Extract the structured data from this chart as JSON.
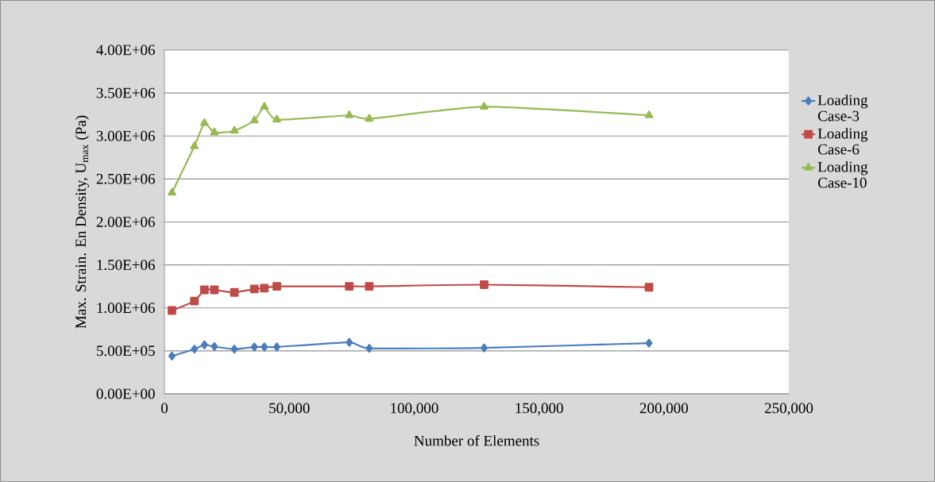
{
  "chart_data": {
    "type": "line",
    "xlabel": "Number of Elements",
    "ylabel": "Max. Strain. En Density, U$_{max}$ (Pa)",
    "x": [
      3000,
      12000,
      16000,
      20000,
      28000,
      36000,
      40000,
      45000,
      74000,
      82000,
      128000,
      194000
    ],
    "series": [
      {
        "name": "Loading Case-3",
        "color": "#4a7ebb",
        "marker": "diamond",
        "values": [
          440000,
          520000,
          570000,
          550000,
          520000,
          545000,
          545000,
          545000,
          600000,
          530000,
          535000,
          590000
        ]
      },
      {
        "name": "Loading Case-6",
        "color": "#be4b48",
        "marker": "square",
        "values": [
          970000,
          1080000,
          1210000,
          1210000,
          1180000,
          1220000,
          1230000,
          1250000,
          1250000,
          1250000,
          1270000,
          1240000
        ]
      },
      {
        "name": "Loading Case-10",
        "color": "#98b954",
        "marker": "triangle",
        "values": [
          2340000,
          2880000,
          3150000,
          3040000,
          3060000,
          3180000,
          3340000,
          3190000,
          3240000,
          3200000,
          3340000,
          3240000
        ]
      }
    ],
    "xlim": [
      0,
      250000
    ],
    "ylim": [
      0,
      4000000
    ],
    "xticks": [
      0,
      {
        "value": 50000,
        "label": "50,000"
      },
      {
        "value": 100000,
        "label": "100,000"
      },
      {
        "value": 150000,
        "label": "150,000"
      },
      {
        "value": 200000,
        "label": "200,000"
      },
      {
        "value": 250000,
        "label": "250,000"
      }
    ],
    "yticks": [
      {
        "value": 0,
        "label": "0.00E+00"
      },
      {
        "value": 500000,
        "label": "5.00E+05"
      },
      {
        "value": 1000000,
        "label": "1.00E+06"
      },
      {
        "value": 1500000,
        "label": "1.50E+06"
      },
      {
        "value": 2000000,
        "label": "2.00E+06"
      },
      {
        "value": 2500000,
        "label": "2.50E+06"
      },
      {
        "value": 3000000,
        "label": "3.00E+06"
      },
      {
        "value": 3500000,
        "label": "3.50E+06"
      },
      {
        "value": 4000000,
        "label": "4.00E+06"
      }
    ],
    "grid": "y",
    "legend": "right",
    "line_style": "solid"
  }
}
